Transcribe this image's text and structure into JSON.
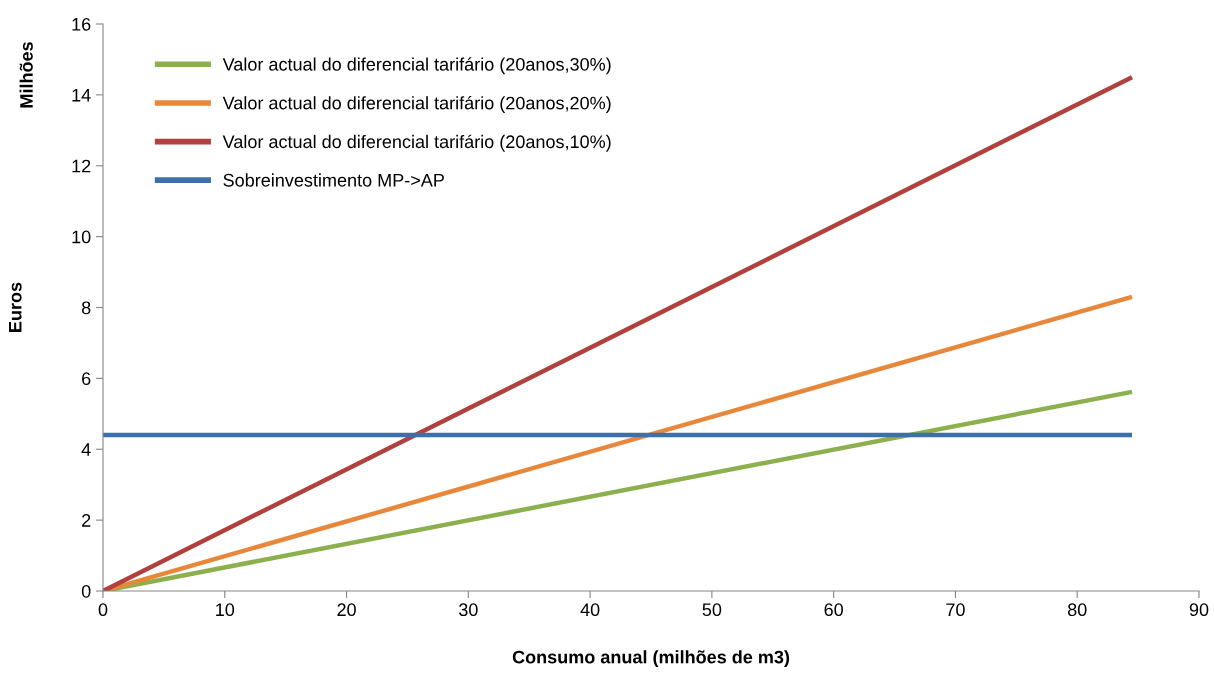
{
  "chart_data": {
    "type": "line",
    "xlabel": "Consumo anual (milhões de m3)",
    "ylabel": "Euros",
    "annotations": [
      "Milhões"
    ],
    "x": [
      0,
      84.5
    ],
    "series": [
      {
        "name": "Valor actual do diferencial tarifário (20anos,30%)",
        "color": "#8db04e",
        "values": [
          0,
          5.62
        ]
      },
      {
        "name": "Valor actual do diferencial tarifário (20anos,20%)",
        "color": "#e8873a",
        "values": [
          0,
          8.3
        ]
      },
      {
        "name": "Valor actual do diferencial tarifário (20anos,10%)",
        "color": "#b0413e",
        "values": [
          0,
          14.5
        ]
      },
      {
        "name": "Sobreinvestimento MP->AP",
        "color": "#3d6fab",
        "values": [
          4.4,
          4.4
        ]
      }
    ],
    "xlim": [
      0,
      90
    ],
    "xticks": [
      0,
      10,
      20,
      30,
      40,
      50,
      60,
      70,
      80,
      90
    ],
    "ylim": [
      0,
      16
    ],
    "yticks": [
      0,
      2,
      4,
      6,
      8,
      10,
      12,
      14,
      16
    ],
    "grid": false,
    "legend": "top left",
    "marker": "none",
    "line_style": "solid"
  }
}
